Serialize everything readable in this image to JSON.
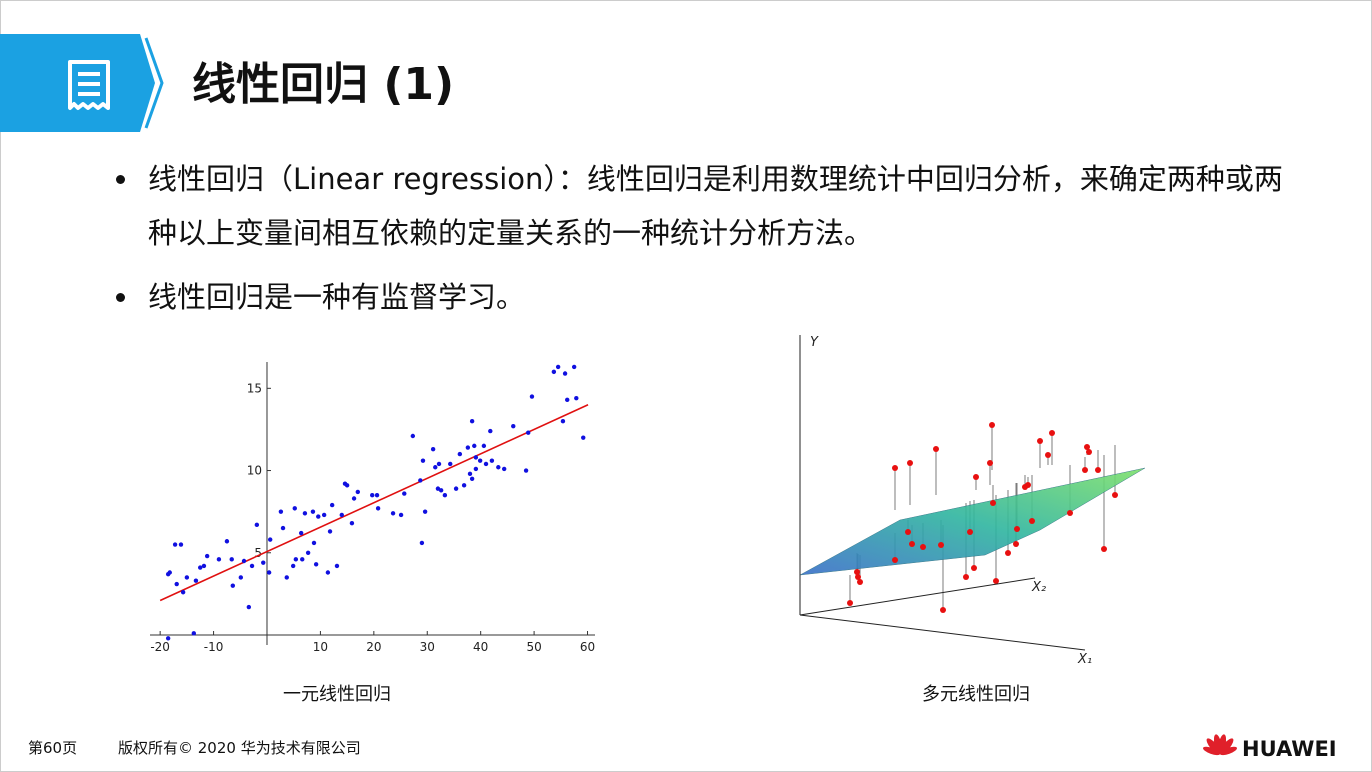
{
  "header": {
    "title": "线性回归 (1)"
  },
  "bullets": [
    "线性回归（Linear regression）：线性回归是利用数理统计中回归分析，来确定两种或两种以上变量间相互依赖的定量关系的一种统计分析方法。",
    "线性回归是一种有监督学习。"
  ],
  "figures": [
    {
      "caption": "一元线性回归"
    },
    {
      "caption": "多元线性回归",
      "axis_labels": [
        "Y",
        "X₂",
        "X₁"
      ]
    }
  ],
  "footer": {
    "page": "第60页",
    "copyright": "版权所有© 2020 华为技术有限公司",
    "brand": "HUAWEI"
  },
  "chart_data": {
    "type": "scatter",
    "x": [
      -18.5,
      -13.7,
      -18.5,
      -18.2,
      -17.2,
      -16.1,
      -16.9,
      -15.7,
      -15.0,
      -13.3,
      -12.5,
      -11.8,
      -11.2,
      -9.0,
      -7.5,
      -6.6,
      -6.4,
      -4.9,
      -4.3,
      -3.4,
      -2.8,
      -1.9,
      -0.7,
      0.4,
      0.6,
      2.6,
      3.0,
      3.7,
      4.9,
      5.2,
      5.4,
      6.4,
      6.6,
      7.1,
      7.7,
      8.6,
      8.8,
      9.2,
      9.6,
      10.7,
      11.4,
      11.8,
      12.2,
      13.1,
      14.0,
      14.6,
      15.0,
      15.9,
      16.3,
      17.0,
      19.7,
      20.6,
      20.8,
      23.6,
      25.1,
      25.7,
      27.3,
      28.7,
      29.0,
      29.2,
      29.6,
      31.1,
      31.5,
      32.0,
      32.2,
      32.6,
      33.3,
      34.3,
      35.4,
      36.1,
      36.9,
      37.6,
      38.0,
      38.4,
      38.4,
      38.8,
      39.1,
      39.1,
      39.9,
      40.6,
      41.0,
      41.8,
      42.1,
      43.3,
      44.4,
      46.1,
      48.5,
      48.9,
      49.6,
      53.7,
      54.5,
      55.4,
      55.8,
      56.2,
      57.5,
      57.9,
      59.2
    ],
    "values": [
      -0.2,
      0.1,
      3.7,
      3.8,
      5.5,
      5.5,
      3.1,
      2.6,
      3.5,
      3.3,
      4.1,
      4.2,
      4.8,
      4.6,
      5.7,
      4.6,
      3.0,
      3.5,
      4.5,
      1.7,
      4.2,
      6.7,
      4.4,
      3.8,
      5.8,
      7.5,
      6.5,
      3.5,
      4.2,
      7.7,
      4.6,
      6.2,
      4.6,
      7.4,
      5.0,
      7.5,
      5.6,
      4.3,
      7.2,
      7.3,
      3.8,
      6.3,
      7.9,
      4.2,
      7.3,
      9.2,
      9.1,
      6.8,
      8.3,
      8.7,
      8.5,
      8.5,
      7.7,
      7.4,
      7.3,
      8.6,
      12.1,
      9.4,
      5.6,
      10.6,
      7.5,
      11.3,
      10.2,
      8.9,
      10.4,
      8.8,
      8.5,
      10.4,
      8.9,
      11.0,
      9.1,
      11.4,
      9.8,
      13.0,
      9.5,
      11.5,
      10.8,
      10.1,
      10.6,
      11.5,
      10.4,
      12.4,
      10.6,
      10.2,
      10.1,
      12.7,
      10.0,
      12.3,
      14.5,
      16.0,
      16.3,
      13.0,
      15.9,
      14.3,
      16.3,
      14.4,
      12.0
    ],
    "color": "#1010e0",
    "fit_line": {
      "x": [
        -20,
        60.1
      ],
      "values": [
        2.1,
        14.0
      ],
      "color": "#e01010"
    },
    "xlim": [
      -21.9,
      61.4
    ],
    "ylim": [
      0,
      16.6
    ],
    "xticks": [
      -20,
      -10,
      10,
      20,
      30,
      40,
      50,
      60
    ],
    "yticks": [
      5,
      10,
      15
    ]
  }
}
